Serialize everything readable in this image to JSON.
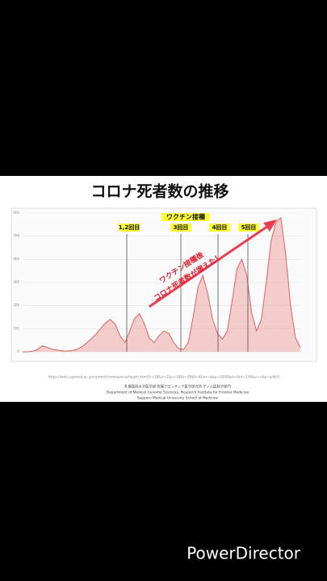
{
  "chart_data": {
    "type": "area",
    "title": "コロナ死者数の推移",
    "values": [
      0,
      0,
      2,
      10,
      25,
      20,
      12,
      8,
      5,
      3,
      5,
      10,
      20,
      35,
      55,
      75,
      100,
      125,
      140,
      120,
      70,
      40,
      90,
      145,
      165,
      120,
      60,
      40,
      70,
      90,
      80,
      40,
      15,
      10,
      40,
      150,
      280,
      330,
      250,
      140,
      80,
      55,
      90,
      220,
      360,
      400,
      330,
      170,
      90,
      140,
      300,
      480,
      560,
      580,
      420,
      200,
      60,
      20
    ],
    "color": "#e06060",
    "ylim": [
      0,
      600
    ],
    "yticks": [
      0,
      100,
      200,
      300,
      400,
      500,
      600
    ],
    "grid": true,
    "annotations": [
      "ワクチン接種",
      "1,2回目",
      "3回目",
      "4回目",
      "5回目"
    ],
    "arrow_text": [
      "ワクチン接種後",
      "コロナ死者数が増えた！"
    ],
    "source": [
      "https://web.sapmed.ac.jp/canmol/coronavirus/death.html?c=18&n=1&s=28&l=30&f=d&m=a&p=2000&d=r&d=238&e=c&p=ad&l3",
      "札幌医科大学医学部 附属フロンティア医学研究所 ゲノム医科学部門",
      "Department of Medical Genome Sciences, Research Institute for Frontier Medicine",
      "Sapporo Medical University School of Medicine"
    ]
  },
  "watermark": "PowerDirector"
}
